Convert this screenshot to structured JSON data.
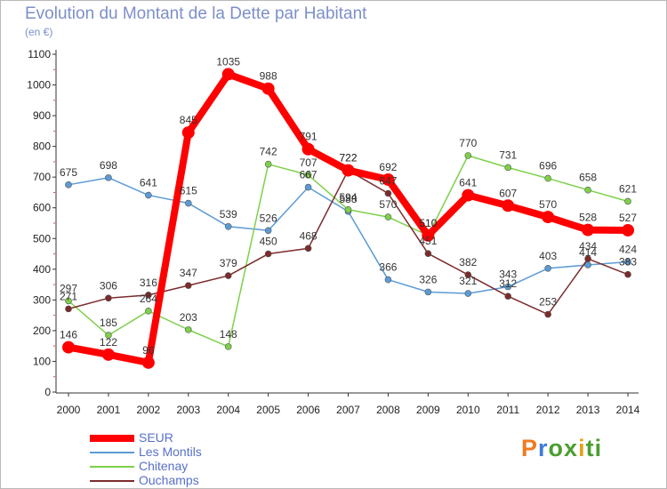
{
  "title": "Evolution du Montant de la Dette par Habitant",
  "subtitle": "(en €)",
  "logo_text": "Proxiti",
  "chart_data": {
    "type": "line",
    "x": [
      "2000",
      "2001",
      "2002",
      "2003",
      "2004",
      "2005",
      "2006",
      "2007",
      "2008",
      "2009",
      "2010",
      "2011",
      "2012",
      "2013",
      "2014"
    ],
    "ylim": [
      0,
      1100
    ],
    "yticks": [
      0,
      100,
      200,
      300,
      400,
      500,
      600,
      700,
      800,
      900,
      1000,
      1100
    ],
    "grid": false,
    "legend_position": "bottom-left",
    "series": [
      {
        "name": "SEUR",
        "color": "#ff0000",
        "emphasis": true,
        "values": [
          146,
          122,
          96,
          845,
          1035,
          988,
          791,
          722,
          692,
          510,
          641,
          607,
          570,
          528,
          527
        ]
      },
      {
        "name": "Les Montils",
        "color": "#5b9bd5",
        "values": [
          675,
          698,
          641,
          615,
          539,
          526,
          667,
          588,
          366,
          326,
          321,
          343,
          403,
          414,
          424
        ]
      },
      {
        "name": "Chitenay",
        "color": "#7ed04b",
        "values": [
          297,
          185,
          264,
          203,
          148,
          742,
          707,
          594,
          570,
          510,
          770,
          731,
          696,
          658,
          621
        ]
      },
      {
        "name": "Ouchamps",
        "color": "#7b2b2b",
        "values": [
          271,
          306,
          316,
          347,
          379,
          450,
          468,
          722,
          647,
          451,
          382,
          312,
          253,
          434,
          383
        ]
      }
    ],
    "data_labels": {
      "SEUR": [
        "146",
        "122",
        "96",
        "845",
        "1035",
        "988",
        "791",
        "722",
        "692",
        "510",
        "641",
        "607",
        "570",
        "528",
        "527"
      ],
      "Les Montils": [
        "675",
        "698",
        "641",
        "615",
        "539",
        "526",
        "667",
        "588",
        "366",
        "326",
        "321",
        "343",
        "403",
        "414",
        "424"
      ],
      "Chitenay": [
        "297",
        "185",
        "264",
        "203",
        "148",
        "742",
        "707",
        "594",
        "570",
        "510",
        "770",
        "731",
        "696",
        "658",
        "621"
      ],
      "Ouchamps": [
        "271",
        "306",
        "316",
        "347",
        "379",
        "450",
        "468",
        "722",
        "647",
        "451",
        "382",
        "312",
        "253",
        "434",
        "383"
      ]
    }
  }
}
